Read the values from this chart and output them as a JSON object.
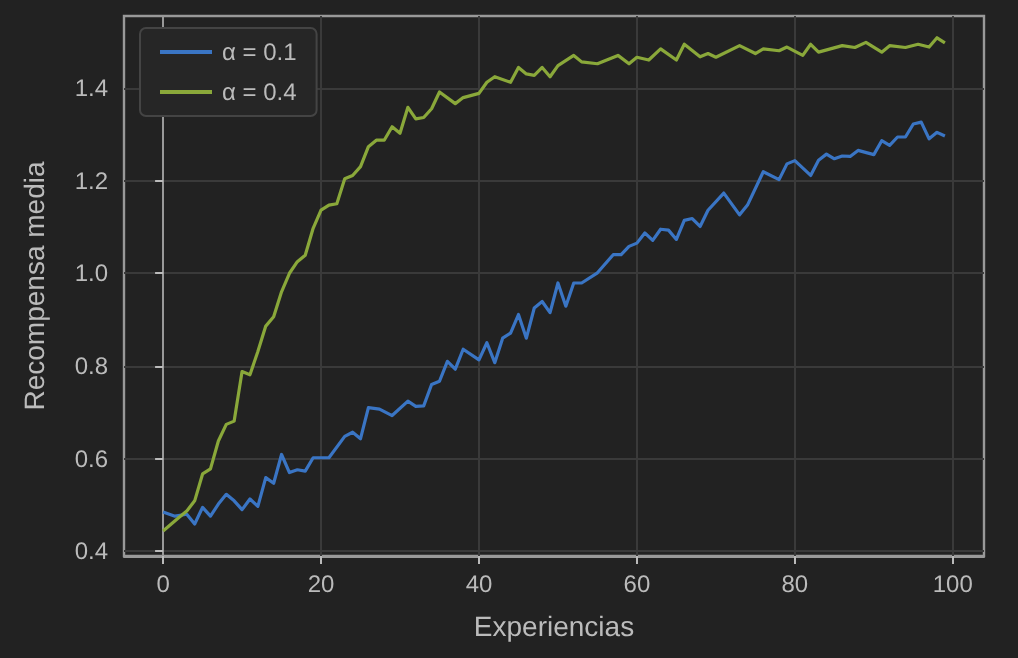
{
  "chart_data": {
    "type": "line",
    "xlabel": "Experiencias",
    "ylabel": "Recompensa media",
    "xlim": [
      -4.95,
      103.95
    ],
    "xticks": [
      0,
      20,
      40,
      60,
      80,
      100
    ],
    "ylim": [
      0.39,
      1.555
    ],
    "yticks": [
      0.4,
      0.6,
      0.8,
      {
        "value": 1.0,
        "label": "1.0"
      },
      1.2,
      1.4
    ],
    "grid": true,
    "legend": "top left",
    "marker": "none",
    "line_style": "solid",
    "series": [
      {
        "name": "α = 0.1",
        "color": "#3a75c4",
        "x": [
          0,
          1.5,
          3,
          4,
          5,
          6,
          7,
          8,
          9,
          10,
          11,
          12,
          13,
          14,
          15,
          16,
          17,
          18,
          19,
          21,
          23,
          24,
          25,
          26,
          27.4,
          29,
          31,
          32,
          33,
          34,
          35,
          36,
          37,
          38,
          40,
          41,
          42,
          43,
          44,
          45,
          46,
          47,
          48,
          49,
          50,
          51,
          52,
          53,
          55,
          57,
          58,
          59,
          60,
          61,
          62,
          63,
          64,
          65,
          66,
          67,
          68,
          69,
          71,
          73,
          74,
          76,
          78,
          79,
          80,
          82,
          83,
          84,
          85,
          86,
          87,
          88,
          90,
          91,
          92,
          93,
          94,
          95,
          96,
          97,
          98,
          99
        ],
        "values": [
          0.485,
          0.476,
          0.48,
          0.459,
          0.495,
          0.476,
          0.502,
          0.523,
          0.509,
          0.49,
          0.513,
          0.497,
          0.559,
          0.547,
          0.609,
          0.57,
          0.576,
          0.573,
          0.602,
          0.602,
          0.648,
          0.657,
          0.643,
          0.71,
          0.707,
          0.693,
          0.724,
          0.713,
          0.714,
          0.76,
          0.767,
          0.81,
          0.793,
          0.836,
          0.813,
          0.85,
          0.807,
          0.86,
          0.871,
          0.911,
          0.86,
          0.925,
          0.939,
          0.915,
          0.979,
          0.929,
          0.979,
          0.979,
          1.001,
          1.04,
          1.04,
          1.058,
          1.065,
          1.087,
          1.071,
          1.095,
          1.093,
          1.073,
          1.114,
          1.118,
          1.101,
          1.136,
          1.173,
          1.126,
          1.147,
          1.219,
          1.202,
          1.236,
          1.243,
          1.211,
          1.244,
          1.257,
          1.247,
          1.253,
          1.252,
          1.265,
          1.256,
          1.286,
          1.276,
          1.294,
          1.294,
          1.322,
          1.326,
          1.29,
          1.304,
          1.296
        ]
      },
      {
        "name": "α = 0.4",
        "color": "#8aa83a",
        "x": [
          0,
          2,
          3,
          4,
          5,
          6,
          7,
          8,
          9,
          10,
          11,
          12,
          13,
          14,
          15,
          16,
          17,
          18,
          19,
          20,
          21,
          22,
          23,
          24,
          25,
          26,
          27,
          28,
          29,
          30,
          31,
          32,
          33,
          34,
          35,
          37,
          38,
          40,
          41,
          42,
          44,
          45,
          46,
          47,
          48,
          49,
          50,
          52,
          53,
          55,
          57.6,
          59,
          60,
          61.5,
          63,
          65,
          66,
          68,
          69,
          70,
          73,
          75,
          76,
          78,
          79,
          81,
          82,
          83,
          86,
          87.6,
          89,
          91,
          92,
          94,
          95.6,
          97,
          98,
          99
        ],
        "values": [
          0.444,
          0.473,
          0.487,
          0.509,
          0.567,
          0.578,
          0.638,
          0.674,
          0.681,
          0.788,
          0.781,
          0.831,
          0.886,
          0.906,
          0.96,
          1.0,
          1.025,
          1.039,
          1.097,
          1.136,
          1.147,
          1.15,
          1.204,
          1.211,
          1.23,
          1.273,
          1.287,
          1.287,
          1.316,
          1.302,
          1.358,
          1.333,
          1.336,
          1.355,
          1.391,
          1.366,
          1.379,
          1.388,
          1.412,
          1.424,
          1.412,
          1.444,
          1.43,
          1.427,
          1.444,
          1.424,
          1.448,
          1.47,
          1.456,
          1.452,
          1.47,
          1.452,
          1.466,
          1.46,
          1.484,
          1.46,
          1.494,
          1.467,
          1.474,
          1.466,
          1.491,
          1.474,
          1.484,
          1.48,
          1.488,
          1.47,
          1.494,
          1.477,
          1.491,
          1.487,
          1.498,
          1.477,
          1.491,
          1.487,
          1.494,
          1.488,
          1.508,
          1.497
        ]
      }
    ]
  }
}
